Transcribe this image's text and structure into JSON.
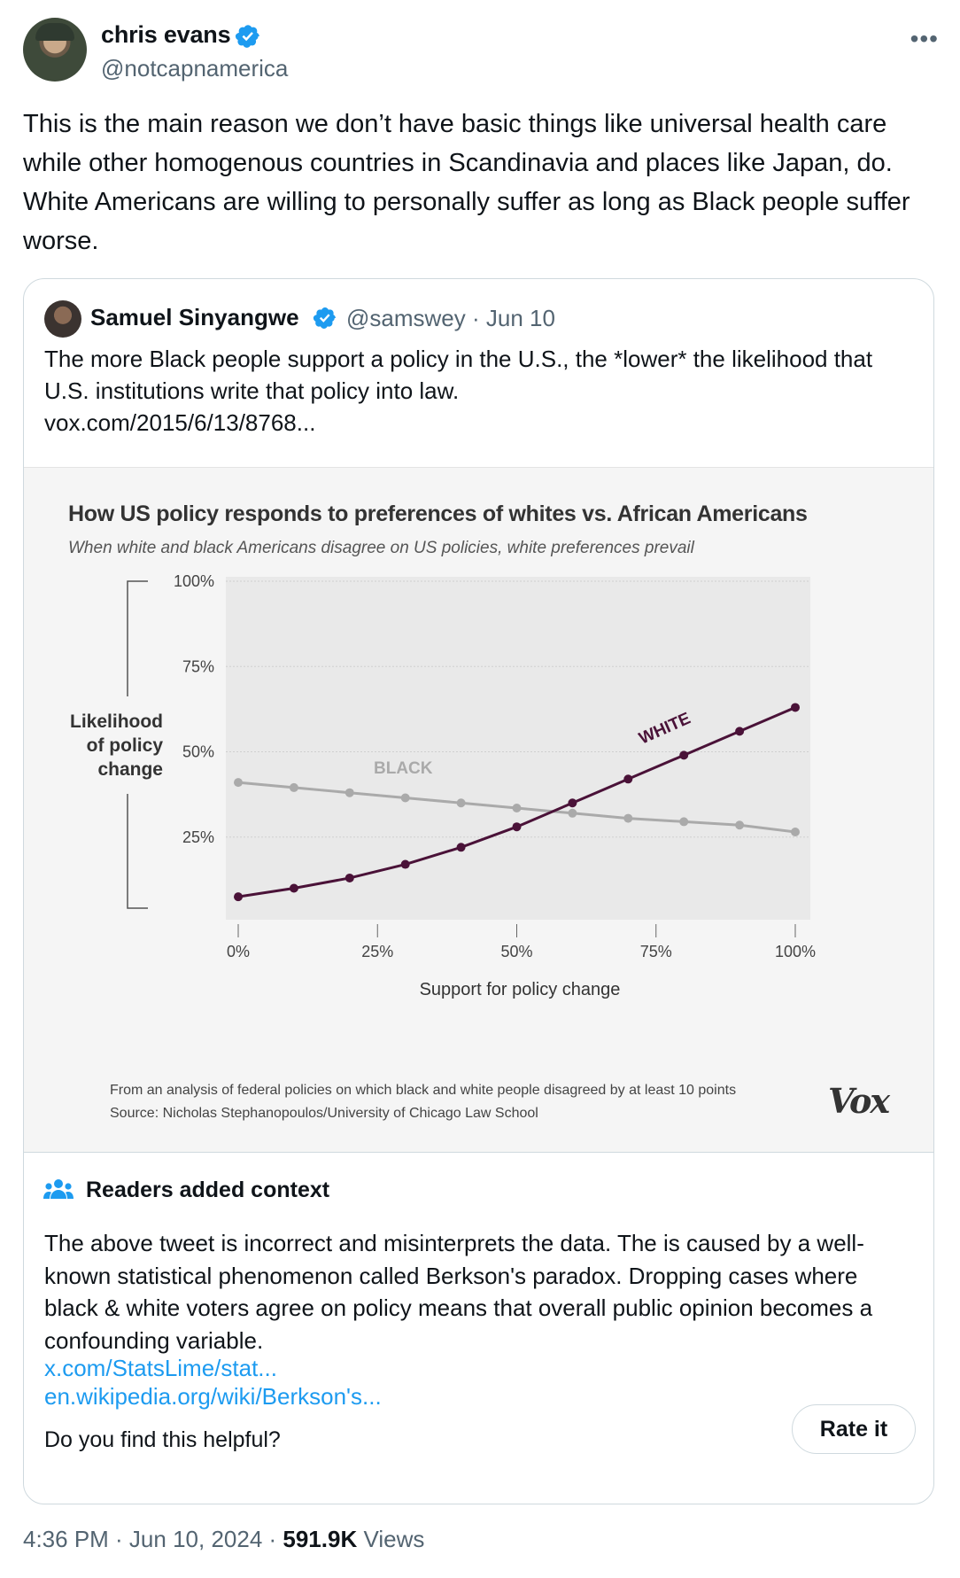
{
  "tweet": {
    "display_name": "chris evans",
    "handle": "@notcapnamerica",
    "more_label": "•••",
    "text": "This is the main reason we don’t have basic things like universal health care while other homogenous countries in Scandinavia and places like Japan, do. White Americans are willing to personally suffer as long as Black people suffer worse."
  },
  "quote": {
    "display_name": "Samuel Sinyangwe",
    "meta": "@samswey · Jun 10",
    "text": "The more Black people support a policy in the U.S., the *lower* the likelihood that U.S. institutions write that policy into law.",
    "link": "vox.com/2015/6/13/8768..."
  },
  "chart": {
    "title": "How US policy responds to preferences of whites vs. African Americans",
    "subtitle": "When white and black Americans disagree on US policies, white preferences prevail",
    "footnote_1": "From an analysis of federal policies on which black and white people disagreed by at least 10 points",
    "footnote_2": "Source: Nicholas Stephanopoulos/University of Chicago Law School",
    "logo": "Vox"
  },
  "chart_data": {
    "type": "line",
    "title": "How US policy responds to preferences of whites vs. African Americans",
    "subtitle": "When white and black Americans disagree on US policies, white preferences prevail",
    "xlabel": "Support for policy change",
    "ylabel": [
      "Likelihood",
      "of policy",
      "change"
    ],
    "x_ticks": [
      "0%",
      "25%",
      "50%",
      "75%",
      "100%"
    ],
    "y_ticks": [
      "100%",
      "75%",
      "50%",
      "25%"
    ],
    "xlim": [
      0,
      100
    ],
    "ylim": [
      0,
      100
    ],
    "x": [
      0,
      10,
      20,
      30,
      40,
      50,
      60,
      70,
      80,
      90,
      100
    ],
    "series": [
      {
        "name": "BLACK",
        "color": "#aaaaaa",
        "values": [
          41,
          39.5,
          38,
          36.5,
          35,
          33.5,
          32,
          30.5,
          29.5,
          28.5,
          26.5
        ]
      },
      {
        "name": "WHITE",
        "color": "#4a1238",
        "values": [
          7.5,
          10,
          13,
          17,
          22,
          28,
          35,
          42,
          49,
          56,
          63
        ]
      }
    ],
    "grid": true,
    "legend": "inline labels"
  },
  "context": {
    "title": "Readers added context",
    "text": "The above tweet is incorrect and misinterprets the data. The is caused by a well-known statistical phenomenon called Berkson's paradox. Dropping cases where black & white voters agree on policy means that overall public opinion becomes a confounding variable.",
    "link_1": "x.com/StatsLime/stat...",
    "link_2": "en.wikipedia.org/wiki/Berkson's...",
    "helpful_prompt": "Do you find this helpful?",
    "rate_label": "Rate it"
  },
  "footer": {
    "time": "4:36 PM · Jun 10, 2024 · ",
    "views_count": "591.9K",
    "views_label": " Views"
  }
}
